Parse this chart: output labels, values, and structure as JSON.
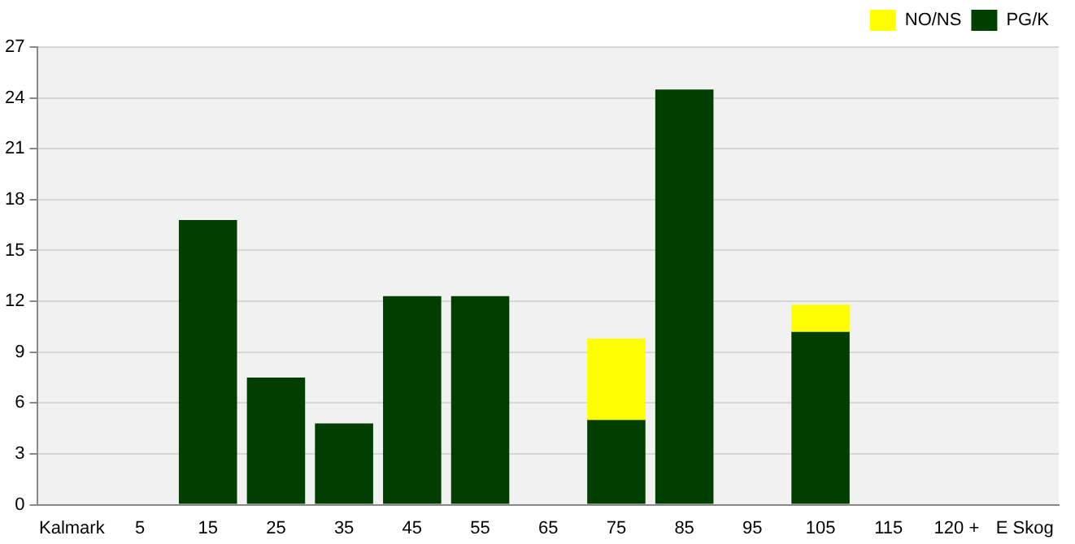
{
  "chart_data": {
    "type": "bar",
    "stacked": true,
    "categories": [
      "Kalmark",
      "5",
      "15",
      "25",
      "35",
      "45",
      "55",
      "65",
      "75",
      "85",
      "95",
      "105",
      "115",
      "120 +",
      "E Skog"
    ],
    "series": [
      {
        "name": "PG/K",
        "color": "#003f00",
        "values": [
          null,
          null,
          16.8,
          7.5,
          4.8,
          12.3,
          12.3,
          null,
          5.0,
          24.5,
          null,
          10.2,
          null,
          null,
          null
        ]
      },
      {
        "name": "NO/NS",
        "color": "#ffff00",
        "values": [
          null,
          null,
          null,
          null,
          null,
          null,
          null,
          null,
          4.8,
          null,
          null,
          1.6,
          null,
          null,
          null
        ]
      }
    ],
    "ylim": [
      0,
      27
    ],
    "yticks": [
      0,
      3,
      6,
      9,
      12,
      15,
      18,
      21,
      24,
      27
    ],
    "grid": "y",
    "legend": "top right"
  }
}
